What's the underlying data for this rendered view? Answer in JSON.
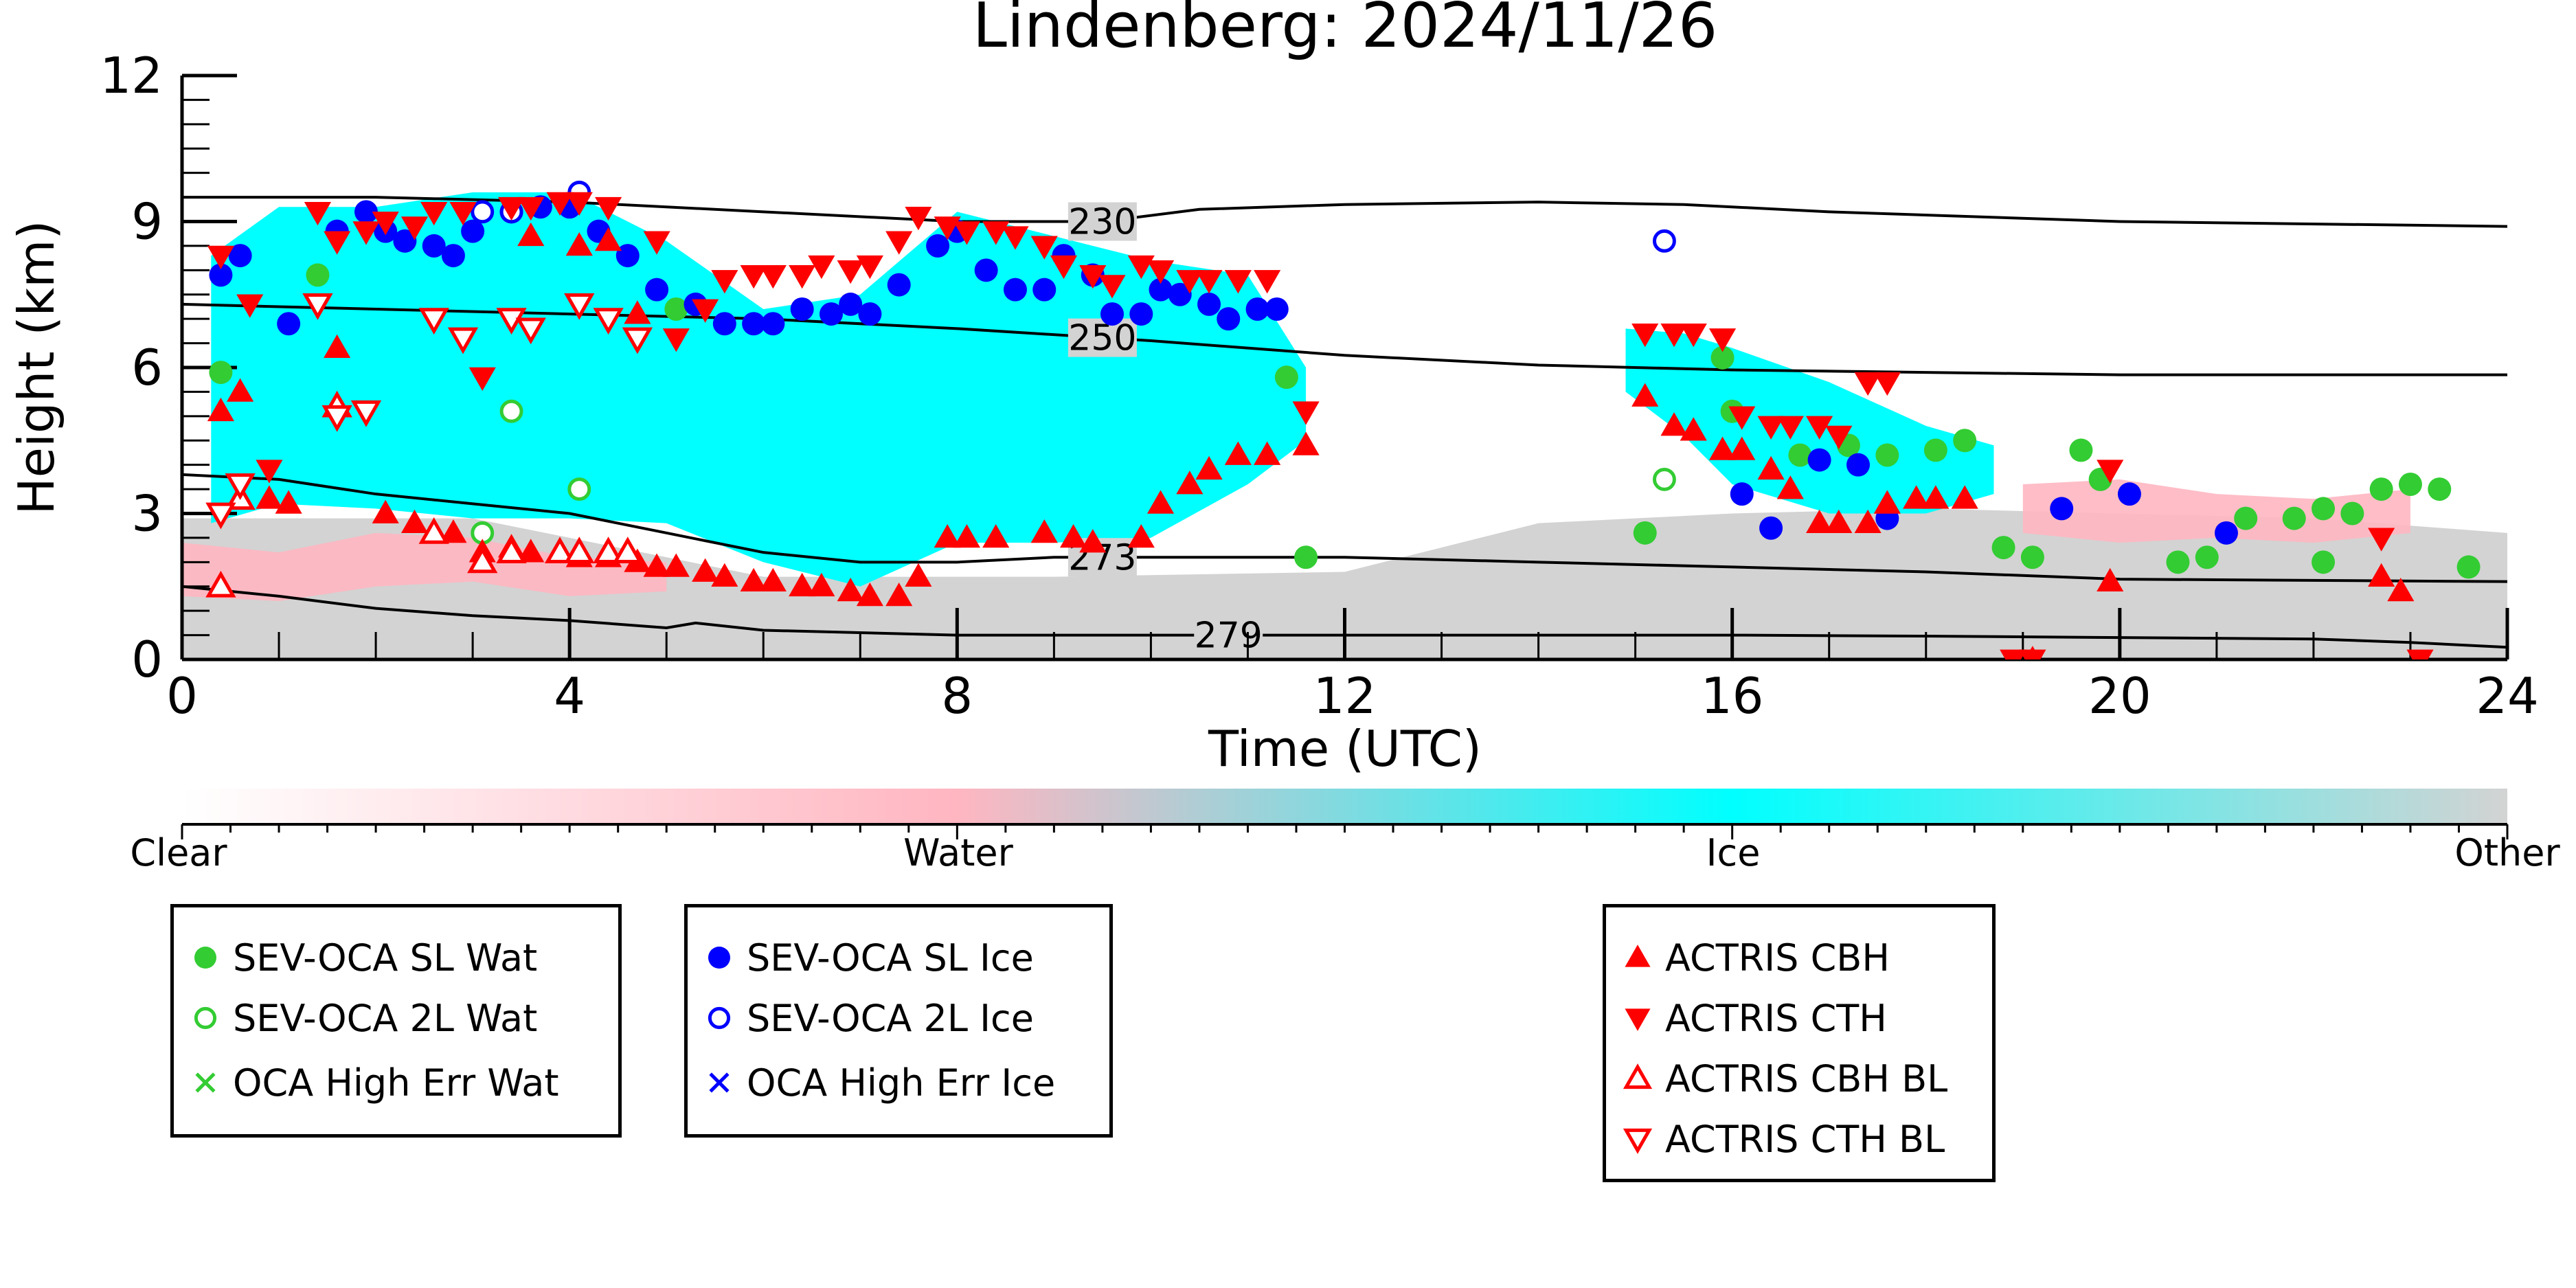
{
  "chart_data": {
    "type": "scatter",
    "title": "Lindenberg: 2024/11/26",
    "xlabel": "Time (UTC)",
    "ylabel": "Height (km)",
    "xlim": [
      0,
      24
    ],
    "ylim": [
      0,
      12
    ],
    "x_ticks": [
      "0",
      "4",
      "8",
      "12",
      "16",
      "20",
      "24"
    ],
    "y_ticks": [
      "0",
      "3",
      "6",
      "9",
      "12"
    ],
    "colorbar": {
      "labels": [
        "Clear",
        "Water",
        "Ice",
        "Other"
      ],
      "colors": [
        "#ffffff",
        "#ffb6c1",
        "#00ffff",
        "#d3d3d3"
      ]
    },
    "contours": [
      {
        "label": "230",
        "x": [
          0,
          2,
          4,
          6,
          8,
          9.5,
          10.5,
          12,
          14,
          15.5,
          17,
          20,
          24
        ],
        "y": [
          9.5,
          9.5,
          9.4,
          9.2,
          9.0,
          9.0,
          9.25,
          9.35,
          9.4,
          9.35,
          9.2,
          9.0,
          8.9
        ]
      },
      {
        "label": "250",
        "x": [
          0,
          2,
          4,
          6,
          8,
          10,
          12,
          14,
          16,
          18,
          20,
          24
        ],
        "y": [
          7.3,
          7.2,
          7.1,
          7.0,
          6.8,
          6.55,
          6.25,
          6.05,
          5.95,
          5.9,
          5.85,
          5.85
        ]
      },
      {
        "label": "273",
        "x": [
          0,
          1,
          2,
          3,
          4,
          5,
          6,
          7,
          8,
          9,
          10,
          12,
          14,
          16,
          18,
          20,
          24
        ],
        "y": [
          3.8,
          3.7,
          3.4,
          3.2,
          3.0,
          2.6,
          2.2,
          2.0,
          2.0,
          2.1,
          2.1,
          2.1,
          2.0,
          1.9,
          1.8,
          1.65,
          1.6
        ]
      },
      {
        "label": "279",
        "x": [
          0,
          1,
          2,
          3,
          4,
          5,
          5.3,
          6,
          8,
          10,
          12,
          14,
          16,
          18,
          20,
          22,
          23,
          24
        ],
        "y": [
          1.5,
          1.3,
          1.05,
          0.9,
          0.8,
          0.65,
          0.75,
          0.6,
          0.5,
          0.5,
          0.5,
          0.5,
          0.5,
          0.48,
          0.45,
          0.42,
          0.35,
          0.25
        ]
      }
    ],
    "series": [
      {
        "name": "SEV-OCA SL Wat",
        "color": "#33cc33",
        "marker": "circle-filled",
        "points": [
          [
            1.4,
            7.9
          ],
          [
            0.4,
            5.9
          ],
          [
            5.1,
            7.2
          ],
          [
            11.4,
            5.8
          ],
          [
            11.6,
            2.1
          ],
          [
            15.1,
            2.6
          ],
          [
            15.9,
            6.2
          ],
          [
            16.0,
            5.1
          ],
          [
            16.7,
            4.2
          ],
          [
            17.2,
            4.4
          ],
          [
            17.6,
            4.2
          ],
          [
            18.1,
            4.3
          ],
          [
            18.4,
            4.5
          ],
          [
            18.8,
            2.3
          ],
          [
            19.1,
            2.1
          ],
          [
            19.6,
            4.3
          ],
          [
            19.8,
            3.7
          ],
          [
            20.6,
            2.0
          ],
          [
            20.9,
            2.1
          ],
          [
            21.3,
            2.9
          ],
          [
            21.8,
            2.9
          ],
          [
            22.1,
            3.1
          ],
          [
            22.1,
            2.0
          ],
          [
            22.4,
            3.0
          ],
          [
            22.7,
            3.5
          ],
          [
            23.0,
            3.6
          ],
          [
            23.3,
            3.5
          ],
          [
            23.6,
            1.9
          ]
        ]
      },
      {
        "name": "SEV-OCA 2L Wat",
        "color": "#33cc33",
        "marker": "circle-open",
        "points": [
          [
            3.1,
            2.6
          ],
          [
            3.4,
            5.1
          ],
          [
            4.1,
            3.5
          ],
          [
            15.3,
            3.7
          ]
        ]
      },
      {
        "name": "OCA High Err Wat",
        "color": "#33cc33",
        "marker": "x",
        "points": []
      },
      {
        "name": "SEV-OCA SL Ice",
        "color": "#0000ff",
        "marker": "circle-filled",
        "points": [
          [
            0.4,
            7.9
          ],
          [
            0.6,
            8.3
          ],
          [
            1.1,
            6.9
          ],
          [
            1.6,
            8.8
          ],
          [
            1.9,
            9.2
          ],
          [
            2.1,
            8.8
          ],
          [
            2.3,
            8.6
          ],
          [
            2.6,
            8.5
          ],
          [
            2.8,
            8.3
          ],
          [
            3.0,
            8.8
          ],
          [
            3.4,
            9.2
          ],
          [
            3.7,
            9.3
          ],
          [
            4.0,
            9.3
          ],
          [
            4.3,
            8.8
          ],
          [
            4.6,
            8.3
          ],
          [
            4.9,
            7.6
          ],
          [
            5.3,
            7.3
          ],
          [
            5.6,
            6.9
          ],
          [
            5.9,
            6.9
          ],
          [
            6.1,
            6.9
          ],
          [
            6.4,
            7.2
          ],
          [
            6.7,
            7.1
          ],
          [
            6.9,
            7.3
          ],
          [
            7.1,
            7.1
          ],
          [
            7.4,
            7.7
          ],
          [
            7.8,
            8.5
          ],
          [
            8.0,
            8.8
          ],
          [
            8.3,
            8.0
          ],
          [
            8.6,
            7.6
          ],
          [
            8.9,
            7.6
          ],
          [
            9.1,
            8.3
          ],
          [
            9.4,
            7.9
          ],
          [
            9.6,
            7.1
          ],
          [
            9.9,
            7.1
          ],
          [
            10.1,
            7.6
          ],
          [
            10.3,
            7.5
          ],
          [
            10.6,
            7.3
          ],
          [
            10.8,
            7.0
          ],
          [
            11.1,
            7.2
          ],
          [
            11.3,
            7.2
          ],
          [
            16.1,
            3.4
          ],
          [
            16.4,
            2.7
          ],
          [
            16.9,
            4.1
          ],
          [
            17.3,
            4.0
          ],
          [
            17.6,
            2.9
          ],
          [
            19.4,
            3.1
          ],
          [
            20.1,
            3.4
          ],
          [
            21.1,
            2.6
          ]
        ]
      },
      {
        "name": "SEV-OCA 2L Ice",
        "color": "#0000ff",
        "marker": "circle-open",
        "points": [
          [
            3.1,
            9.2
          ],
          [
            3.4,
            9.2
          ],
          [
            4.1,
            9.6
          ],
          [
            15.3,
            8.6
          ]
        ]
      },
      {
        "name": "OCA High Err Ice",
        "color": "#0000ff",
        "marker": "x",
        "points": []
      },
      {
        "name": "ACTRIS CBH",
        "color": "#ff0000",
        "marker": "triangle-up",
        "points": [
          [
            0.4,
            5.1
          ],
          [
            0.6,
            5.5
          ],
          [
            0.9,
            3.3
          ],
          [
            1.1,
            3.2
          ],
          [
            1.6,
            6.4
          ],
          [
            2.1,
            3.0
          ],
          [
            2.4,
            2.8
          ],
          [
            2.6,
            2.6
          ],
          [
            2.8,
            2.6
          ],
          [
            3.1,
            2.2
          ],
          [
            3.4,
            2.3
          ],
          [
            3.6,
            2.2
          ],
          [
            3.9,
            2.2
          ],
          [
            4.1,
            2.1
          ],
          [
            4.4,
            2.1
          ],
          [
            4.7,
            2.0
          ],
          [
            4.9,
            1.9
          ],
          [
            5.1,
            1.9
          ],
          [
            5.4,
            1.8
          ],
          [
            5.6,
            1.7
          ],
          [
            5.9,
            1.6
          ],
          [
            6.1,
            1.6
          ],
          [
            6.4,
            1.5
          ],
          [
            6.6,
            1.5
          ],
          [
            6.9,
            1.4
          ],
          [
            7.1,
            1.3
          ],
          [
            7.4,
            1.3
          ],
          [
            7.6,
            1.7
          ],
          [
            7.9,
            2.5
          ],
          [
            8.1,
            2.5
          ],
          [
            8.4,
            2.5
          ],
          [
            8.9,
            2.6
          ],
          [
            9.2,
            2.5
          ],
          [
            9.4,
            2.4
          ],
          [
            9.9,
            2.5
          ],
          [
            10.1,
            3.2
          ],
          [
            10.4,
            3.6
          ],
          [
            10.6,
            3.9
          ],
          [
            10.9,
            4.2
          ],
          [
            11.2,
            4.2
          ],
          [
            11.6,
            4.4
          ],
          [
            3.6,
            8.7
          ],
          [
            4.1,
            8.5
          ],
          [
            4.4,
            8.6
          ],
          [
            4.7,
            7.1
          ],
          [
            15.1,
            5.4
          ],
          [
            15.4,
            4.8
          ],
          [
            15.6,
            4.7
          ],
          [
            15.9,
            4.3
          ],
          [
            16.1,
            4.3
          ],
          [
            16.4,
            3.9
          ],
          [
            16.6,
            3.5
          ],
          [
            16.9,
            2.8
          ],
          [
            17.1,
            2.8
          ],
          [
            17.4,
            2.8
          ],
          [
            17.6,
            3.2
          ],
          [
            17.9,
            3.3
          ],
          [
            18.1,
            3.3
          ],
          [
            18.4,
            3.3
          ],
          [
            19.1,
            0.0
          ],
          [
            19.9,
            1.6
          ],
          [
            22.7,
            1.7
          ],
          [
            22.9,
            1.4
          ]
        ]
      },
      {
        "name": "ACTRIS CTH",
        "color": "#ff0000",
        "marker": "triangle-down",
        "points": [
          [
            0.4,
            8.3
          ],
          [
            0.7,
            7.3
          ],
          [
            0.9,
            3.9
          ],
          [
            1.4,
            9.2
          ],
          [
            1.6,
            8.6
          ],
          [
            1.9,
            8.8
          ],
          [
            2.1,
            9.0
          ],
          [
            2.4,
            8.9
          ],
          [
            2.6,
            9.2
          ],
          [
            2.9,
            9.2
          ],
          [
            3.1,
            5.8
          ],
          [
            3.4,
            9.3
          ],
          [
            3.6,
            9.3
          ],
          [
            3.9,
            9.4
          ],
          [
            4.1,
            9.4
          ],
          [
            4.4,
            9.3
          ],
          [
            4.9,
            8.6
          ],
          [
            5.1,
            6.6
          ],
          [
            5.4,
            7.2
          ],
          [
            5.6,
            7.8
          ],
          [
            5.9,
            7.9
          ],
          [
            6.1,
            7.9
          ],
          [
            6.4,
            7.9
          ],
          [
            6.6,
            8.1
          ],
          [
            6.9,
            8.0
          ],
          [
            7.1,
            8.1
          ],
          [
            7.4,
            8.6
          ],
          [
            7.6,
            9.1
          ],
          [
            7.9,
            8.9
          ],
          [
            8.1,
            8.8
          ],
          [
            8.4,
            8.8
          ],
          [
            8.6,
            8.7
          ],
          [
            8.9,
            8.5
          ],
          [
            9.1,
            8.1
          ],
          [
            9.4,
            7.9
          ],
          [
            9.6,
            7.7
          ],
          [
            9.9,
            8.1
          ],
          [
            10.1,
            8.0
          ],
          [
            10.4,
            7.8
          ],
          [
            10.6,
            7.8
          ],
          [
            10.9,
            7.8
          ],
          [
            11.2,
            7.8
          ],
          [
            11.6,
            5.1
          ],
          [
            15.1,
            6.7
          ],
          [
            15.4,
            6.7
          ],
          [
            15.6,
            6.7
          ],
          [
            15.9,
            6.6
          ],
          [
            16.1,
            5.0
          ],
          [
            16.4,
            4.8
          ],
          [
            16.6,
            4.8
          ],
          [
            16.9,
            4.8
          ],
          [
            17.1,
            4.6
          ],
          [
            17.4,
            5.7
          ],
          [
            17.6,
            5.7
          ],
          [
            18.9,
            0.0
          ],
          [
            19.1,
            0.0
          ],
          [
            19.9,
            3.9
          ],
          [
            22.7,
            2.5
          ],
          [
            23.1,
            0.0
          ]
        ]
      },
      {
        "name": "ACTRIS CBH BL",
        "color": "#ff0000",
        "marker": "triangle-up-open",
        "points": [
          [
            0.4,
            1.5
          ],
          [
            0.6,
            3.3
          ],
          [
            2.6,
            2.6
          ],
          [
            3.1,
            2.0
          ],
          [
            3.4,
            2.2
          ],
          [
            3.9,
            2.2
          ],
          [
            4.1,
            2.2
          ],
          [
            4.4,
            2.2
          ],
          [
            4.6,
            2.2
          ],
          [
            1.6,
            5.2
          ]
        ]
      },
      {
        "name": "ACTRIS CTH BL",
        "color": "#ff0000",
        "marker": "triangle-down-open",
        "points": [
          [
            0.4,
            3.0
          ],
          [
            0.6,
            3.6
          ],
          [
            1.4,
            7.3
          ],
          [
            1.6,
            5.0
          ],
          [
            1.9,
            5.1
          ],
          [
            2.6,
            7.0
          ],
          [
            2.9,
            6.6
          ],
          [
            3.4,
            7.0
          ],
          [
            3.6,
            6.8
          ],
          [
            4.1,
            7.3
          ],
          [
            4.4,
            7.0
          ],
          [
            4.7,
            6.6
          ]
        ]
      }
    ]
  },
  "legends": [
    {
      "items": [
        {
          "label": "SEV-OCA SL Wat",
          "color": "#33cc33",
          "marker": "circle-filled"
        },
        {
          "label": "SEV-OCA 2L Wat",
          "color": "#33cc33",
          "marker": "circle-open"
        },
        {
          "label": "OCA High Err Wat",
          "color": "#33cc33",
          "marker": "x"
        }
      ]
    },
    {
      "items": [
        {
          "label": "SEV-OCA SL Ice",
          "color": "#0000ff",
          "marker": "circle-filled"
        },
        {
          "label": "SEV-OCA 2L Ice",
          "color": "#0000ff",
          "marker": "circle-open"
        },
        {
          "label": "OCA High Err Ice",
          "color": "#0000ff",
          "marker": "x"
        }
      ]
    },
    {
      "items": [
        {
          "label": "ACTRIS CBH",
          "color": "#ff0000",
          "marker": "triangle-up"
        },
        {
          "label": "ACTRIS CTH",
          "color": "#ff0000",
          "marker": "triangle-down"
        },
        {
          "label": "ACTRIS CBH BL",
          "color": "#ff0000",
          "marker": "triangle-up-open"
        },
        {
          "label": "ACTRIS CTH BL",
          "color": "#ff0000",
          "marker": "triangle-down-open"
        }
      ]
    }
  ]
}
